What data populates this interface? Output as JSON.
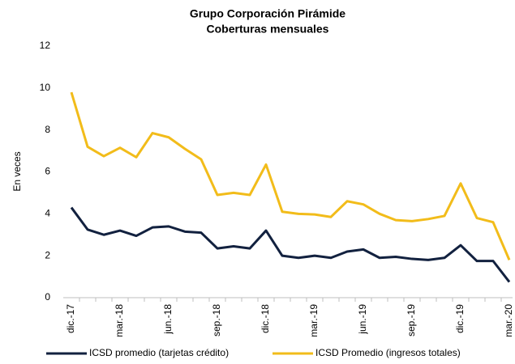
{
  "chart_data": {
    "type": "line",
    "title": [
      "Grupo Corporación Pirámide",
      "Coberturas mensuales"
    ],
    "ylabel": "En veces",
    "categories": [
      "dic.-17",
      null,
      null,
      "mar.-18",
      null,
      null,
      "jun.-18",
      null,
      null,
      "sep.-18",
      null,
      null,
      "dic.-18",
      null,
      null,
      "mar.-19",
      null,
      null,
      "jun.-19",
      null,
      null,
      "sep.-19",
      null,
      null,
      "dic.-19",
      null,
      null,
      "mar.-20"
    ],
    "series": [
      {
        "name": "ICSD promedio (tarjetas crédito)",
        "color": "#12213f",
        "values": [
          4.3,
          3.25,
          3.0,
          3.2,
          2.95,
          3.35,
          3.4,
          3.15,
          3.1,
          2.35,
          2.45,
          2.35,
          3.2,
          2.0,
          1.9,
          2.0,
          1.9,
          2.2,
          2.3,
          1.9,
          1.95,
          1.85,
          1.8,
          1.9,
          2.5,
          1.75,
          1.75,
          0.75
        ]
      },
      {
        "name": "ICSD Promedio (ingresos totales)",
        "color": "#f2bc1a",
        "values": [
          9.8,
          7.2,
          6.75,
          7.15,
          6.7,
          7.85,
          7.65,
          7.1,
          6.6,
          4.9,
          5.0,
          4.9,
          6.35,
          4.1,
          4.0,
          3.97,
          3.85,
          4.6,
          4.45,
          4.0,
          3.7,
          3.65,
          3.75,
          3.9,
          5.45,
          3.8,
          3.6,
          1.8
        ]
      }
    ],
    "ylim": [
      0,
      12
    ],
    "yticks": [
      0,
      2,
      4,
      6,
      8,
      10,
      12
    ],
    "grid": false,
    "legend": "bottom"
  }
}
